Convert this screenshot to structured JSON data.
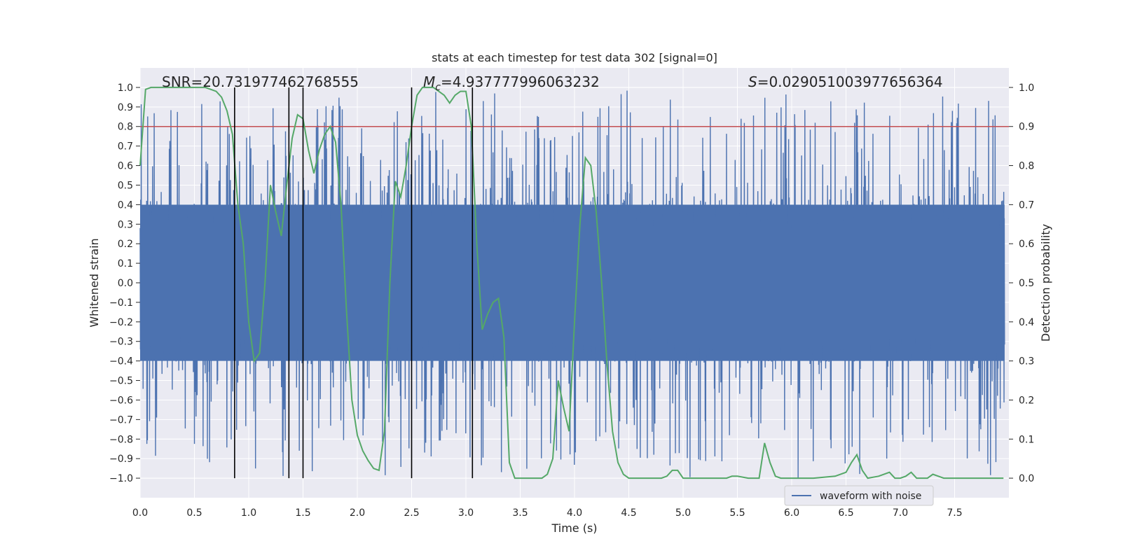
{
  "chart_data": {
    "type": "line",
    "title": "stats at each timestep for test data 302 [signal=0]",
    "xlabel": "Time (s)",
    "ylabel": "Whitened strain",
    "y2label": "Detection probability",
    "xlim": [
      0,
      8.0
    ],
    "ylim": [
      -1.1,
      1.1
    ],
    "y2lim": [
      -0.05,
      1.05
    ],
    "xticks": [
      "0.0",
      "0.5",
      "1.0",
      "1.5",
      "2.0",
      "2.5",
      "3.0",
      "3.5",
      "4.0",
      "4.5",
      "5.0",
      "5.5",
      "6.0",
      "6.5",
      "7.0",
      "7.5"
    ],
    "yticks": [
      "1.0",
      "0.9",
      "0.8",
      "0.7",
      "0.6",
      "0.5",
      "0.4",
      "0.3",
      "0.2",
      "0.1",
      "0.0",
      "−0.1",
      "−0.2",
      "−0.3",
      "−0.4",
      "−0.5",
      "−0.6",
      "−0.7",
      "−0.8",
      "−0.9",
      "−1.0"
    ],
    "y2ticks": [
      "1.0",
      "0.9",
      "0.8",
      "0.7",
      "0.6",
      "0.5",
      "0.4",
      "0.3",
      "0.2",
      "0.1",
      "0.0"
    ],
    "grid": true,
    "annotations": {
      "snr": "SNR=20.731977462768555",
      "mc_symbol": "M",
      "mc_sub": "c",
      "mc_value": "=4.937777996063232",
      "s_symbol": "S",
      "s_value": "=0.029051003977656364"
    },
    "threshold": {
      "y2": 0.9,
      "color": "#c44e52"
    },
    "vlines": [
      0.87,
      1.37,
      1.5,
      2.5,
      3.06
    ],
    "noise": {
      "name": "waveform with noise",
      "color": "#4c72b0",
      "envelope": 0.4,
      "spike_max": 1.0
    },
    "series": [
      {
        "color": "#55a868",
        "axis": "y2",
        "x": [
          0.0,
          0.05,
          0.1,
          0.2,
          0.3,
          0.4,
          0.5,
          0.6,
          0.7,
          0.75,
          0.8,
          0.85,
          0.9,
          0.95,
          1.0,
          1.05,
          1.1,
          1.15,
          1.2,
          1.25,
          1.3,
          1.35,
          1.4,
          1.45,
          1.5,
          1.55,
          1.6,
          1.65,
          1.7,
          1.75,
          1.8,
          1.85,
          1.9,
          1.95,
          2.0,
          2.05,
          2.1,
          2.15,
          2.2,
          2.25,
          2.3,
          2.35,
          2.4,
          2.45,
          2.5,
          2.55,
          2.6,
          2.65,
          2.7,
          2.75,
          2.8,
          2.85,
          2.9,
          2.95,
          3.0,
          3.05,
          3.1,
          3.15,
          3.2,
          3.25,
          3.3,
          3.35,
          3.4,
          3.45,
          3.5,
          3.6,
          3.7,
          3.75,
          3.8,
          3.85,
          3.9,
          3.95,
          4.0,
          4.05,
          4.1,
          4.15,
          4.2,
          4.25,
          4.3,
          4.35,
          4.4,
          4.45,
          4.5,
          4.6,
          4.7,
          4.8,
          4.85,
          4.9,
          4.95,
          5.0,
          5.1,
          5.2,
          5.3,
          5.4,
          5.45,
          5.5,
          5.6,
          5.7,
          5.75,
          5.8,
          5.85,
          5.9,
          6.0,
          6.2,
          6.4,
          6.5,
          6.55,
          6.6,
          6.65,
          6.7,
          6.8,
          6.9,
          6.95,
          7.0,
          7.05,
          7.1,
          7.15,
          7.2,
          7.25,
          7.3,
          7.35,
          7.4,
          7.5,
          7.6,
          7.7,
          7.8,
          7.9,
          7.95
        ],
        "values": [
          0.8,
          0.995,
          1.0,
          1.0,
          1.0,
          1.0,
          1.0,
          1.0,
          0.99,
          0.975,
          0.94,
          0.88,
          0.7,
          0.6,
          0.4,
          0.3,
          0.32,
          0.5,
          0.75,
          0.68,
          0.62,
          0.75,
          0.87,
          0.93,
          0.92,
          0.84,
          0.78,
          0.84,
          0.88,
          0.9,
          0.86,
          0.7,
          0.43,
          0.2,
          0.11,
          0.07,
          0.045,
          0.025,
          0.02,
          0.12,
          0.5,
          0.76,
          0.72,
          0.8,
          0.9,
          0.98,
          1.0,
          1.0,
          1.0,
          0.99,
          0.98,
          0.96,
          0.98,
          0.99,
          0.99,
          0.9,
          0.6,
          0.38,
          0.42,
          0.45,
          0.46,
          0.36,
          0.04,
          0.0,
          0.0,
          0.0,
          0.0,
          0.01,
          0.05,
          0.25,
          0.18,
          0.12,
          0.4,
          0.65,
          0.82,
          0.8,
          0.68,
          0.5,
          0.29,
          0.12,
          0.04,
          0.01,
          0.0,
          0.0,
          0.0,
          0.0,
          0.005,
          0.02,
          0.02,
          0.0,
          0.0,
          0.0,
          0.0,
          0.0,
          0.005,
          0.005,
          0.0,
          0.0,
          0.09,
          0.04,
          0.005,
          0.0,
          0.0,
          0.0,
          0.005,
          0.015,
          0.04,
          0.06,
          0.02,
          0.0,
          0.005,
          0.015,
          0.0,
          0.0,
          0.005,
          0.015,
          0.0,
          0.0,
          0.0,
          0.01,
          0.005,
          0.0,
          0.0,
          0.0,
          0.0,
          0.0,
          0.0,
          0.0
        ]
      }
    ],
    "legend": {
      "placement": "lower-right"
    },
    "colors": {
      "background": "#eaeaf2",
      "grid": "#ffffff",
      "vline": "#000000"
    }
  }
}
